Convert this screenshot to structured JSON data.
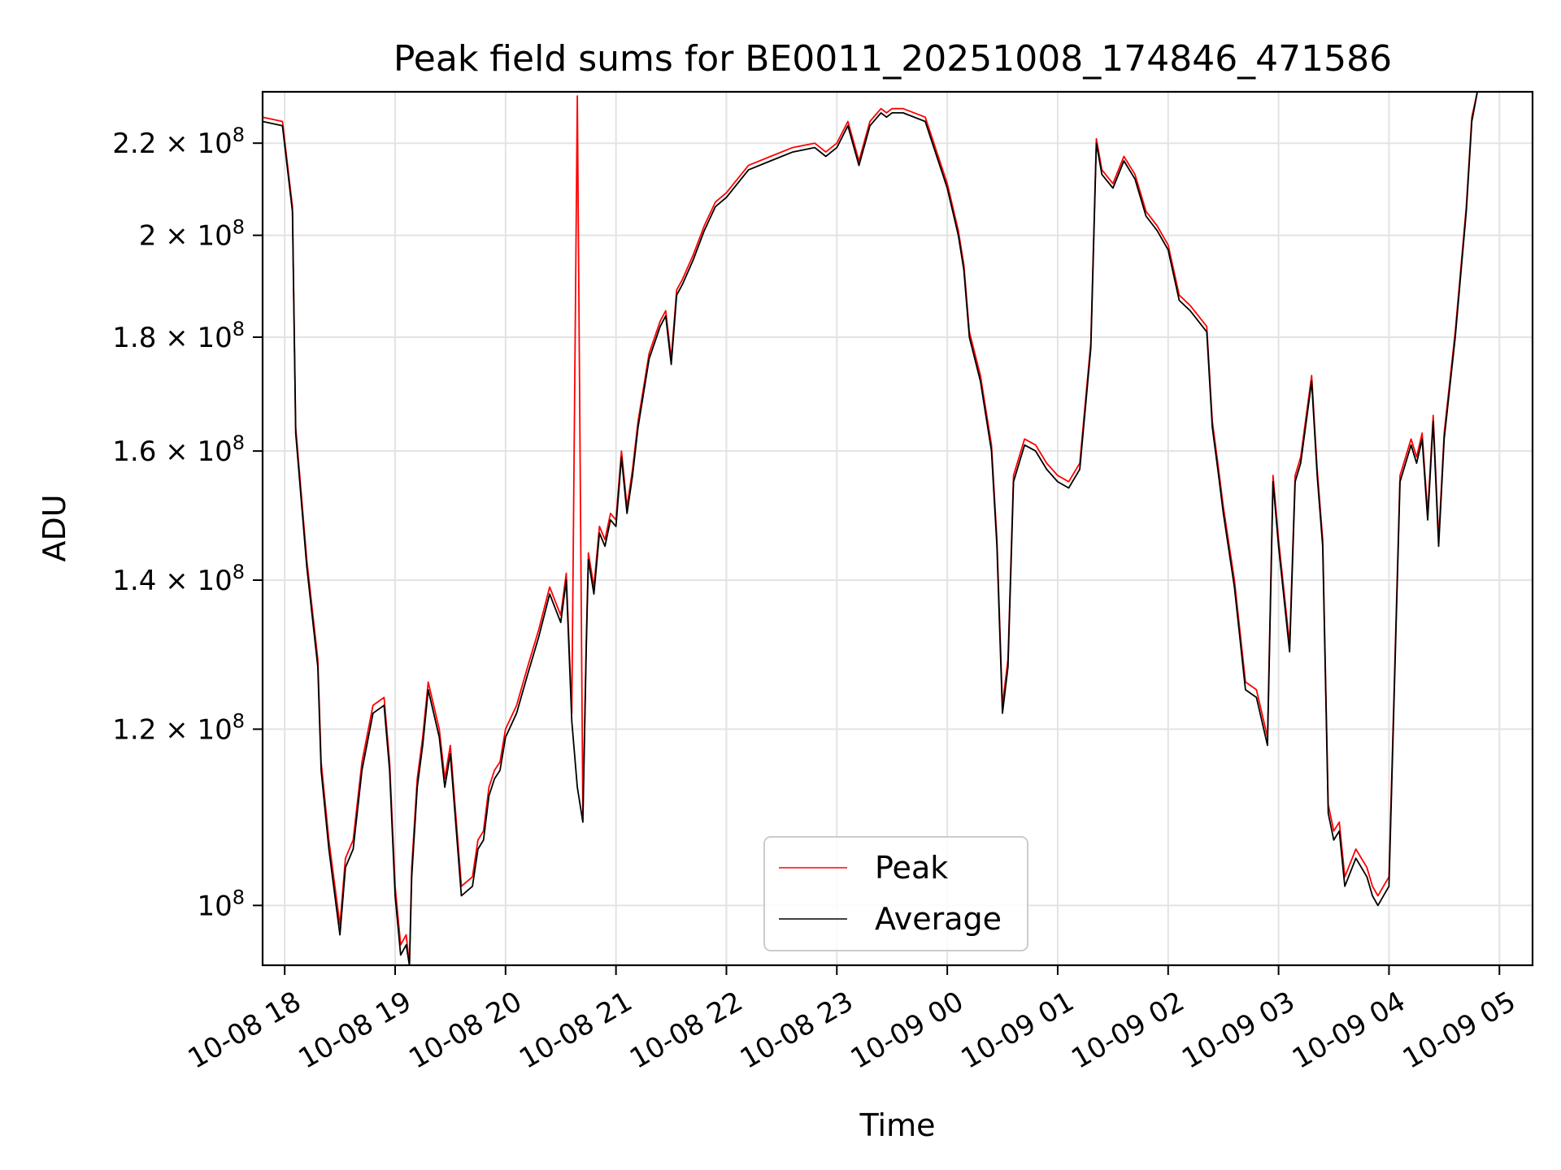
{
  "chart_data": {
    "type": "line",
    "title": "Peak field sums for BE0011_20251008_174846_471586",
    "xlabel": "Time",
    "ylabel": "ADU",
    "yscale": "log",
    "xlim_hours": [
      17.8,
      29.3
    ],
    "ylim": [
      94000000,
      232000000
    ],
    "grid": true,
    "legend_position": "lower center",
    "x_ticks": [
      {
        "h": 18,
        "label": "10-08 18"
      },
      {
        "h": 19,
        "label": "10-08 19"
      },
      {
        "h": 20,
        "label": "10-08 20"
      },
      {
        "h": 21,
        "label": "10-08 21"
      },
      {
        "h": 22,
        "label": "10-08 22"
      },
      {
        "h": 23,
        "label": "10-08 23"
      },
      {
        "h": 24,
        "label": "10-09 00"
      },
      {
        "h": 25,
        "label": "10-09 01"
      },
      {
        "h": 26,
        "label": "10-09 02"
      },
      {
        "h": 27,
        "label": "10-09 03"
      },
      {
        "h": 28,
        "label": "10-09 04"
      },
      {
        "h": 29,
        "label": "10-09 05"
      }
    ],
    "y_ticks": [
      {
        "v": 100000000,
        "mantissa": "",
        "exp": "8"
      },
      {
        "v": 120000000,
        "mantissa": "1.2",
        "exp": "8"
      },
      {
        "v": 140000000,
        "mantissa": "1.4",
        "exp": "8"
      },
      {
        "v": 160000000,
        "mantissa": "1.6",
        "exp": "8"
      },
      {
        "v": 180000000,
        "mantissa": "1.8",
        "exp": "8"
      },
      {
        "v": 200000000,
        "mantissa": "2",
        "exp": "8"
      },
      {
        "v": 220000000,
        "mantissa": "2.2",
        "exp": "8"
      }
    ],
    "x_hours": [
      17.8,
      17.98,
      18.07,
      18.1,
      18.2,
      18.3,
      18.33,
      18.4,
      18.5,
      18.55,
      18.62,
      18.7,
      18.8,
      18.9,
      18.95,
      19.0,
      19.05,
      19.1,
      19.13,
      19.15,
      19.2,
      19.25,
      19.3,
      19.4,
      19.45,
      19.5,
      19.6,
      19.7,
      19.75,
      19.8,
      19.85,
      19.9,
      19.95,
      20.0,
      20.1,
      20.2,
      20.3,
      20.4,
      20.5,
      20.55,
      20.6,
      20.65,
      20.7,
      20.73,
      20.75,
      20.8,
      20.85,
      20.9,
      20.95,
      21.0,
      21.05,
      21.1,
      21.15,
      21.2,
      21.3,
      21.4,
      21.45,
      21.5,
      21.55,
      21.6,
      21.7,
      21.8,
      21.9,
      22.0,
      22.1,
      22.2,
      22.4,
      22.6,
      22.8,
      22.9,
      23.0,
      23.1,
      23.2,
      23.3,
      23.4,
      23.45,
      23.5,
      23.6,
      23.8,
      24.0,
      24.1,
      24.15,
      24.2,
      24.3,
      24.4,
      24.45,
      24.5,
      24.55,
      24.6,
      24.7,
      24.8,
      24.9,
      25.0,
      25.1,
      25.2,
      25.3,
      25.35,
      25.4,
      25.5,
      25.6,
      25.7,
      25.8,
      25.9,
      26.0,
      26.1,
      26.2,
      26.35,
      26.4,
      26.45,
      26.5,
      26.6,
      26.7,
      26.8,
      26.9,
      26.95,
      27.0,
      27.1,
      27.15,
      27.2,
      27.3,
      27.35,
      27.4,
      27.45,
      27.5,
      27.55,
      27.6,
      27.7,
      27.8,
      27.85,
      27.9,
      28.0,
      28.1,
      28.2,
      28.25,
      28.3,
      28.35,
      28.4,
      28.45,
      28.5,
      28.6,
      28.7,
      28.75,
      28.8,
      28.9,
      28.95,
      29.0,
      29.1,
      29.15,
      29.2,
      29.3
    ],
    "series": [
      {
        "name": "Average",
        "color": "#000000",
        "values": [
          225000000,
          224000000,
          205000000,
          163000000,
          142000000,
          128000000,
          115000000,
          106000000,
          97000000,
          104000000,
          106000000,
          115000000,
          122000000,
          123000000,
          115000000,
          101000000,
          95000000,
          96000000,
          93000000,
          103000000,
          113000000,
          118000000,
          125000000,
          119000000,
          113000000,
          117000000,
          101000000,
          102000000,
          106000000,
          107000000,
          112000000,
          114000000,
          115000000,
          119000000,
          122000000,
          127000000,
          132000000,
          138000000,
          134000000,
          140000000,
          121000000,
          113000000,
          109000000,
          130000000,
          143000000,
          138000000,
          147000000,
          145000000,
          149000000,
          148000000,
          159000000,
          150000000,
          156000000,
          164000000,
          176000000,
          182000000,
          184000000,
          175000000,
          188000000,
          190000000,
          195000000,
          201000000,
          206000000,
          208000000,
          211000000,
          214000000,
          216000000,
          218000000,
          219000000,
          217000000,
          219000000,
          224000000,
          215000000,
          224000000,
          227000000,
          226000000,
          227000000,
          227000000,
          225000000,
          210000000,
          200000000,
          193000000,
          180000000,
          172000000,
          160000000,
          145000000,
          122000000,
          128000000,
          155000000,
          161000000,
          160000000,
          157000000,
          155000000,
          154000000,
          157000000,
          178000000,
          220000000,
          213000000,
          210000000,
          216000000,
          212000000,
          204000000,
          201000000,
          197000000,
          187000000,
          185000000,
          181000000,
          164000000,
          157000000,
          150000000,
          139000000,
          125000000,
          124000000,
          118000000,
          155000000,
          145000000,
          130000000,
          155000000,
          158000000,
          172000000,
          156000000,
          145000000,
          110000000,
          107000000,
          108000000,
          102000000,
          105000000,
          103000000,
          101000000,
          100000000,
          102000000,
          155000000,
          161000000,
          158000000,
          162000000,
          149000000,
          165000000,
          145000000,
          162000000,
          180000000,
          205000000,
          225000000,
          232000000
        ]
      },
      {
        "name": "Peak",
        "color": "#ff0000",
        "values": [
          226000000,
          225000000,
          206000000,
          164000000,
          143000000,
          129000000,
          116000000,
          107000000,
          98000000,
          105000000,
          107000000,
          116000000,
          123000000,
          124000000,
          116000000,
          102000000,
          96000000,
          97000000,
          94000000,
          104000000,
          114000000,
          119000000,
          126000000,
          120000000,
          114000000,
          118000000,
          102000000,
          103000000,
          107000000,
          108000000,
          113000000,
          115000000,
          116000000,
          120000000,
          123000000,
          128000000,
          133000000,
          139000000,
          135000000,
          141000000,
          122000000,
          231000000,
          110000000,
          131000000,
          144000000,
          139000000,
          148000000,
          146000000,
          150000000,
          149000000,
          160000000,
          151000000,
          157000000,
          165000000,
          177000000,
          183000000,
          185000000,
          176000000,
          189000000,
          191000000,
          196000000,
          202000000,
          207000000,
          209000000,
          212000000,
          215000000,
          217000000,
          219000000,
          220000000,
          218000000,
          220000000,
          225000000,
          216000000,
          225000000,
          228000000,
          227000000,
          228000000,
          228000000,
          226000000,
          211000000,
          201000000,
          194000000,
          181000000,
          173000000,
          161000000,
          146000000,
          123000000,
          129000000,
          156000000,
          162000000,
          161000000,
          158000000,
          156000000,
          155000000,
          158000000,
          179000000,
          221000000,
          214000000,
          211000000,
          217000000,
          213000000,
          205000000,
          202000000,
          198000000,
          188000000,
          186000000,
          182000000,
          165000000,
          158000000,
          151000000,
          140000000,
          126000000,
          125000000,
          119000000,
          156000000,
          146000000,
          131000000,
          156000000,
          159000000,
          173000000,
          157000000,
          146000000,
          111000000,
          108000000,
          109000000,
          103000000,
          106000000,
          104000000,
          102000000,
          101000000,
          103000000,
          156000000,
          162000000,
          159000000,
          163000000,
          150000000,
          166000000,
          146000000,
          163000000,
          181000000,
          206000000,
          226000000,
          233000000
        ]
      }
    ]
  }
}
